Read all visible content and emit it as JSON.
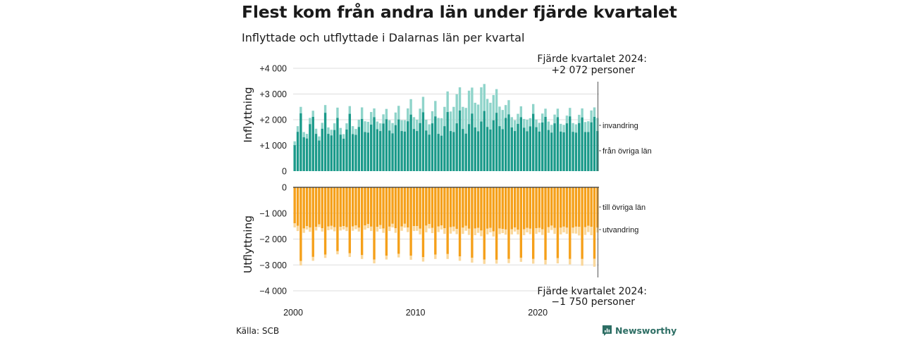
{
  "title": "Flest kom från andra län under fjärde kvartalet",
  "subtitle": "Inflyttade och utflyttade i Dalarnas län per kvartal",
  "source": "Källa: SCB",
  "brand": "Newsworthy",
  "colors": {
    "inflow_main": "#1b9a8a",
    "inflow_extra": "#8fd4ca",
    "outflow_main": "#f5a01a",
    "outflow_extra": "#fad79a",
    "grid": "#dddddd",
    "axis": "#333333",
    "brand": "#2d6e64"
  },
  "chart_data": {
    "type": "bar",
    "stacked": true,
    "x_start": "2000 Q1",
    "quarters": 100,
    "x_ticks": [
      "2000",
      "2010",
      "2020"
    ],
    "grid": true,
    "panels": [
      {
        "ylabel": "Inflyttning",
        "ylim": [
          0,
          4000
        ],
        "y_ticks": [
          "0",
          "+1 000",
          "+2 000",
          "+3 000",
          "+4 000"
        ],
        "annotation": [
          "Fjärde kvartalet 2024:",
          "+2 072 personer"
        ],
        "series": [
          {
            "name": "från övriga län",
            "values": [
              1010,
              1530,
              2250,
              1320,
              1270,
              1830,
              2110,
              1450,
              1190,
              1650,
              2270,
              1450,
              1390,
              1600,
              2070,
              1420,
              1260,
              1620,
              2230,
              1440,
              1410,
              1720,
              2030,
              1520,
              1500,
              1810,
              2100,
              1630,
              1560,
              1850,
              2020,
              1580,
              1470,
              1790,
              2010,
              1560,
              1540,
              1940,
              2200,
              1640,
              1560,
              1870,
              2290,
              1580,
              1420,
              1860,
              2130,
              1450,
              1380,
              1750,
              2300,
              1560,
              1520,
              1860,
              2360,
              1640,
              1460,
              1830,
              2240,
              1700,
              1550,
              1930,
              2340,
              1720,
              1620,
              1980,
              2270,
              1750,
              1630,
              2070,
              2210,
              1700,
              1560,
              1840,
              2100,
              1690,
              1550,
              1740,
              2230,
              1710,
              1540,
              1890,
              2110,
              1600,
              1500,
              1860,
              2100,
              1540,
              1510,
              1860,
              2130,
              1530,
              1500,
              1870,
              2090,
              1520,
              1520,
              1900,
              2110,
              1560
            ]
          },
          {
            "name": "invandring",
            "values": [
              150,
              220,
              250,
              200,
              180,
              240,
              240,
              200,
              160,
              230,
              300,
              250,
              220,
              260,
              400,
              260,
              180,
              240,
              300,
              310,
              230,
              280,
              450,
              420,
              420,
              490,
              340,
              300,
              300,
              360,
              400,
              400,
              400,
              490,
              530,
              420,
              440,
              500,
              600,
              460,
              440,
              560,
              600,
              420,
              400,
              470,
              600,
              620,
              680,
              750,
              800,
              760,
              980,
              1130,
              900,
              860,
              1000,
              1300,
              1010,
              960,
              1040,
              1330,
              1050,
              1090,
              1040,
              980,
              920,
              760,
              750,
              500,
              550,
              400,
              420,
              390,
              420,
              340,
              450,
              320,
              380,
              300,
              340,
              350,
              320,
              330,
              300,
              340,
              330,
              300,
              290,
              300,
              330,
              340,
              320,
              320,
              350,
              390,
              420,
              460,
              370,
              510
            ]
          }
        ]
      },
      {
        "ylabel": "Utflyttning",
        "ylim": [
          -4000,
          0
        ],
        "y_ticks": [
          "0",
          "−1 000",
          "−2 000",
          "−3 000",
          "−4 000"
        ],
        "annotation": [
          "Fjärde kvartalet 2024:",
          "−1 750 personer"
        ],
        "series": [
          {
            "name": "till övriga län",
            "values": [
              -1390,
              -1490,
              -2850,
              -1590,
              -1500,
              -1550,
              -2690,
              -1530,
              -1430,
              -1580,
              -2600,
              -1510,
              -1490,
              -1540,
              -2470,
              -1530,
              -1500,
              -1540,
              -2550,
              -1510,
              -1470,
              -1560,
              -2620,
              -1470,
              -1420,
              -1520,
              -2790,
              -1530,
              -1460,
              -1590,
              -2640,
              -1520,
              -1410,
              -1580,
              -2570,
              -1510,
              -1410,
              -1550,
              -2640,
              -1500,
              -1500,
              -1600,
              -2700,
              -1480,
              -1420,
              -1570,
              -2600,
              -1510,
              -1470,
              -1580,
              -2580,
              -1540,
              -1520,
              -1610,
              -2670,
              -1560,
              -1490,
              -1600,
              -2720,
              -1590,
              -1570,
              -1670,
              -2790,
              -1600,
              -1570,
              -1700,
              -2800,
              -1590,
              -1610,
              -1630,
              -2770,
              -1620,
              -1550,
              -1640,
              -2720,
              -1620,
              -1570,
              -1600,
              -2770,
              -1580,
              -1570,
              -1620,
              -2810,
              -1540,
              -1480,
              -1570,
              -2740,
              -1560,
              -1520,
              -1560,
              -2770,
              -1560,
              -1520,
              -1530,
              -2770,
              -1540,
              -1490,
              -1530,
              -2760,
              -1560
            ]
          },
          {
            "name": "utvandring",
            "values": [
              -160,
              -200,
              -170,
              -170,
              -130,
              -170,
              -150,
              -140,
              -110,
              -130,
              -130,
              -150,
              -140,
              -160,
              -120,
              -140,
              -130,
              -150,
              -140,
              -170,
              -150,
              -150,
              -150,
              -170,
              -160,
              -170,
              -150,
              -180,
              -150,
              -170,
              -150,
              -170,
              -140,
              -180,
              -140,
              -170,
              -150,
              -180,
              -160,
              -190,
              -180,
              -220,
              -170,
              -260,
              -170,
              -200,
              -170,
              -220,
              -160,
              -220,
              -190,
              -250,
              -180,
              -200,
              -170,
              -240,
              -190,
              -240,
              -190,
              -260,
              -190,
              -220,
              -170,
              -220,
              -170,
              -200,
              -150,
              -220,
              -160,
              -200,
              -160,
              -200,
              -160,
              -180,
              -160,
              -230,
              -170,
              -210,
              -180,
              -220,
              -170,
              -220,
              -170,
              -220,
              -170,
              -230,
              -200,
              -260,
              -220,
              -240,
              -210,
              -220,
              -270,
              -330,
              -260,
              -300,
              -240,
              -320,
              -310,
              -190
            ]
          }
        ]
      }
    ]
  }
}
